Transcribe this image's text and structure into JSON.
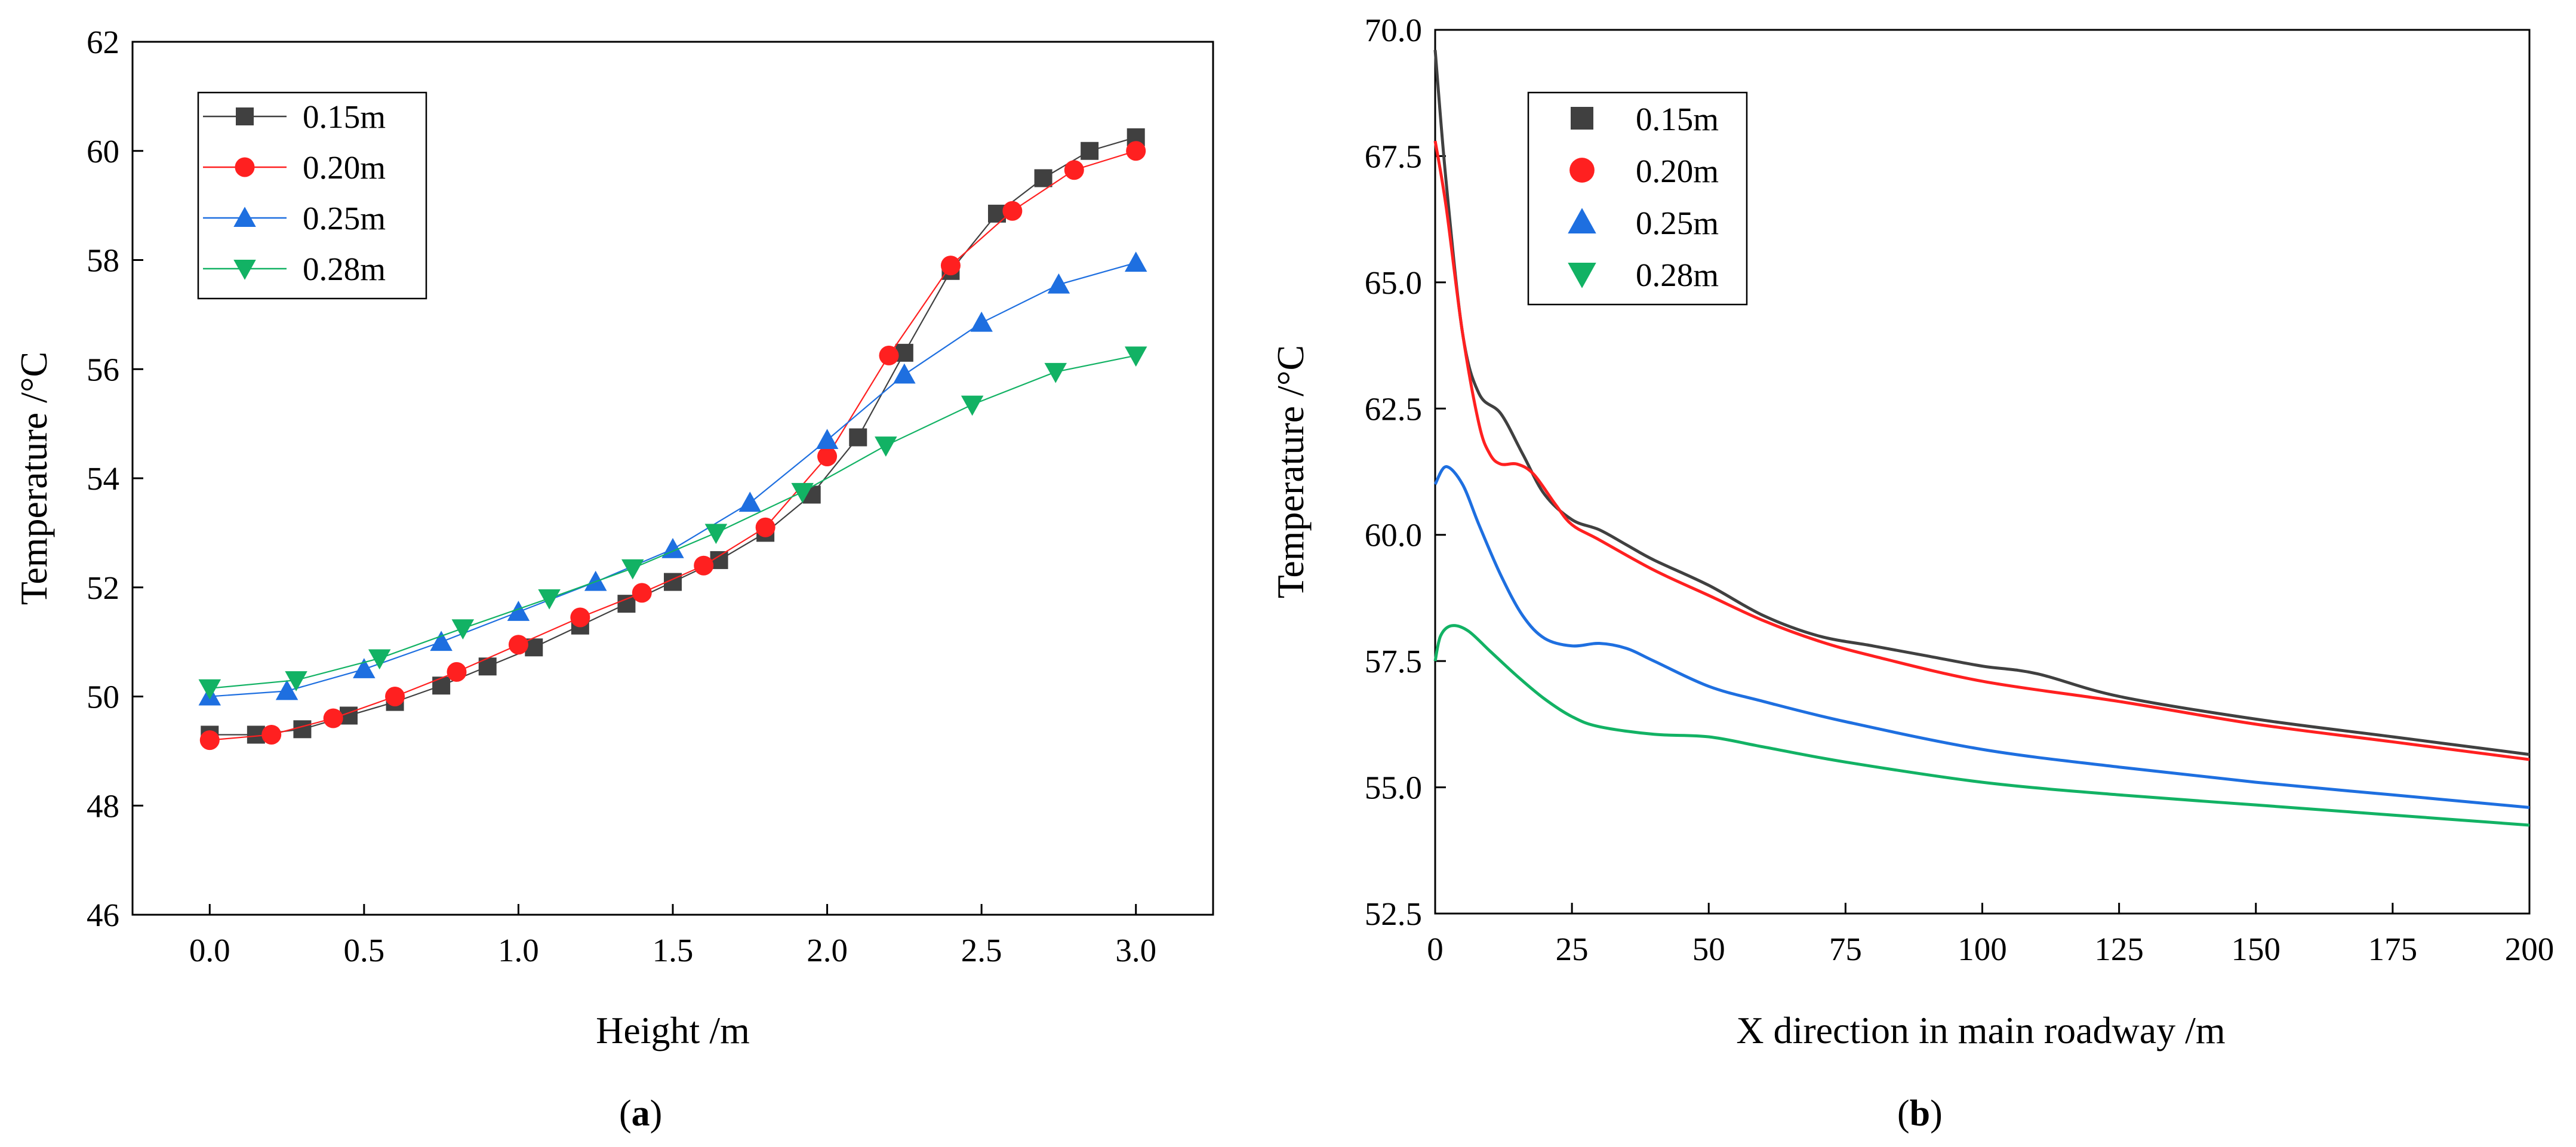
{
  "chart_data": [
    {
      "type": "line",
      "panel_label": "(a)",
      "panel_letter": "a",
      "xlabel": "Height /m",
      "ylabel": "Temperature /°C",
      "xlim": [
        -0.25,
        3.25
      ],
      "ylim": [
        46,
        62
      ],
      "xticks": [
        0.0,
        0.5,
        1.0,
        1.5,
        2.0,
        2.5,
        3.0
      ],
      "xtick_labels": [
        "0.0",
        "0.5",
        "1.0",
        "1.5",
        "2.0",
        "2.5",
        "3.0"
      ],
      "yticks": [
        46,
        48,
        50,
        52,
        54,
        56,
        58,
        60,
        62
      ],
      "ytick_labels": [
        "46",
        "48",
        "50",
        "52",
        "54",
        "56",
        "58",
        "60",
        "62"
      ],
      "legend_position": "top-left",
      "series": [
        {
          "name": "0.15m",
          "color": "#404040",
          "marker": "square",
          "x": [
            0.0,
            0.15,
            0.3,
            0.45,
            0.6,
            0.75,
            0.9,
            1.05,
            1.2,
            1.35,
            1.5,
            1.65,
            1.8,
            1.95,
            2.1,
            2.25,
            2.4,
            2.55,
            2.7,
            2.85,
            3.0
          ],
          "values": [
            49.3,
            49.3,
            49.4,
            49.65,
            49.9,
            50.2,
            50.55,
            50.9,
            51.3,
            51.7,
            52.1,
            52.5,
            53.0,
            53.7,
            54.75,
            56.3,
            57.8,
            58.85,
            59.5,
            60.0,
            60.25
          ]
        },
        {
          "name": "0.20m",
          "color": "#ff2020",
          "marker": "circle",
          "x": [
            0.0,
            0.2,
            0.4,
            0.6,
            0.8,
            1.0,
            1.2,
            1.4,
            1.6,
            1.8,
            2.0,
            2.2,
            2.4,
            2.6,
            2.8,
            3.0
          ],
          "values": [
            49.2,
            49.3,
            49.6,
            50.0,
            50.45,
            50.95,
            51.45,
            51.9,
            52.4,
            53.1,
            54.4,
            56.25,
            57.9,
            58.9,
            59.65,
            60.0
          ]
        },
        {
          "name": "0.25m",
          "color": "#1e6fe0",
          "marker": "triangle-up",
          "x": [
            0.0,
            0.25,
            0.5,
            0.75,
            1.0,
            1.25,
            1.5,
            1.75,
            2.0,
            2.25,
            2.5,
            2.75,
            3.0
          ],
          "values": [
            50.0,
            50.1,
            50.5,
            51.0,
            51.55,
            52.1,
            52.7,
            53.55,
            54.7,
            55.9,
            56.85,
            57.55,
            57.95
          ]
        },
        {
          "name": "0.28m",
          "color": "#12b264",
          "marker": "triangle-down",
          "x": [
            0.0,
            0.28,
            0.55,
            0.82,
            1.1,
            1.37,
            1.64,
            1.92,
            2.19,
            2.47,
            2.74,
            3.0
          ],
          "values": [
            50.15,
            50.3,
            50.7,
            51.25,
            51.8,
            52.35,
            53.0,
            53.75,
            54.6,
            55.35,
            55.95,
            56.25
          ]
        }
      ]
    },
    {
      "type": "line",
      "panel_label": "(b)",
      "panel_letter": "b",
      "xlabel": "X direction in main roadway /m",
      "ylabel": "Temperature /°C",
      "xlim": [
        0,
        200
      ],
      "ylim": [
        52.5,
        70.0
      ],
      "xticks": [
        0,
        25,
        50,
        75,
        100,
        125,
        150,
        175,
        200
      ],
      "xtick_labels": [
        "0",
        "25",
        "50",
        "75",
        "100",
        "125",
        "150",
        "175",
        "200"
      ],
      "yticks": [
        52.5,
        55.0,
        57.5,
        60.0,
        62.5,
        65.0,
        67.5,
        70.0
      ],
      "ytick_labels": [
        "52.5",
        "55.0",
        "57.5",
        "60.0",
        "62.5",
        "65.0",
        "67.5",
        "70.0"
      ],
      "legend_position": "top-left",
      "series": [
        {
          "name": "0.15m",
          "color": "#404040",
          "marker": "square",
          "x": [
            0,
            2,
            5,
            8,
            12,
            16,
            20,
            25,
            30,
            35,
            40,
            50,
            60,
            70,
            80,
            90,
            100,
            110,
            125,
            150,
            175,
            200
          ],
          "values": [
            69.6,
            67.0,
            64.0,
            62.8,
            62.4,
            61.6,
            60.8,
            60.3,
            60.1,
            59.8,
            59.5,
            59.0,
            58.4,
            58.0,
            57.8,
            57.6,
            57.4,
            57.25,
            56.8,
            56.35,
            56.0,
            55.65
          ]
        },
        {
          "name": "0.20m",
          "color": "#ff2020",
          "marker": "circle",
          "x": [
            0,
            2,
            5,
            8,
            10,
            12,
            15,
            18,
            22,
            25,
            30,
            40,
            50,
            60,
            70,
            80,
            100,
            125,
            150,
            175,
            200
          ],
          "values": [
            67.8,
            66.5,
            64.0,
            62.2,
            61.6,
            61.4,
            61.4,
            61.2,
            60.6,
            60.2,
            59.9,
            59.3,
            58.8,
            58.3,
            57.9,
            57.6,
            57.1,
            56.7,
            56.25,
            55.9,
            55.55
          ]
        },
        {
          "name": "0.25m",
          "color": "#1e6fe0",
          "marker": "triangle-up",
          "x": [
            0,
            2,
            5,
            8,
            12,
            16,
            20,
            25,
            30,
            35,
            40,
            50,
            60,
            75,
            100,
            125,
            150,
            175,
            200
          ],
          "values": [
            61.0,
            61.35,
            61.0,
            60.2,
            59.2,
            58.4,
            57.95,
            57.8,
            57.85,
            57.75,
            57.5,
            57.0,
            56.7,
            56.3,
            55.75,
            55.4,
            55.1,
            54.85,
            54.6
          ]
        },
        {
          "name": "0.28m",
          "color": "#12b264",
          "marker": "triangle-down",
          "x": [
            0,
            1,
            3,
            6,
            10,
            15,
            20,
            25,
            30,
            40,
            50,
            60,
            75,
            100,
            125,
            150,
            175,
            200
          ],
          "values": [
            57.5,
            58.0,
            58.2,
            58.1,
            57.7,
            57.2,
            56.75,
            56.4,
            56.2,
            56.05,
            56.0,
            55.8,
            55.5,
            55.1,
            54.85,
            54.65,
            54.45,
            54.25
          ]
        }
      ]
    }
  ]
}
